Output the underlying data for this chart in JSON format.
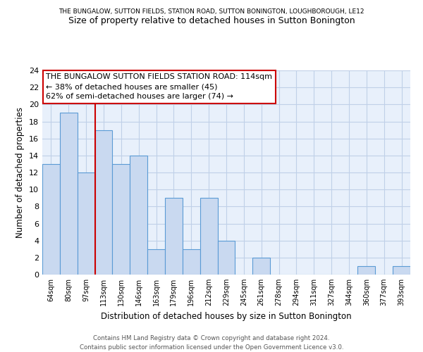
{
  "title_top": "THE BUNGALOW, SUTTON FIELDS, STATION ROAD, SUTTON BONINGTON, LOUGHBOROUGH, LE12",
  "title_main": "Size of property relative to detached houses in Sutton Bonington",
  "xlabel": "Distribution of detached houses by size in Sutton Bonington",
  "ylabel": "Number of detached properties",
  "categories": [
    "64sqm",
    "80sqm",
    "97sqm",
    "113sqm",
    "130sqm",
    "146sqm",
    "163sqm",
    "179sqm",
    "196sqm",
    "212sqm",
    "229sqm",
    "245sqm",
    "261sqm",
    "278sqm",
    "294sqm",
    "311sqm",
    "327sqm",
    "344sqm",
    "360sqm",
    "377sqm",
    "393sqm"
  ],
  "values": [
    13,
    19,
    12,
    17,
    13,
    14,
    3,
    9,
    3,
    9,
    4,
    0,
    2,
    0,
    0,
    0,
    0,
    0,
    1,
    0,
    1
  ],
  "bar_color": "#c9d9f0",
  "bar_edge_color": "#5b9bd5",
  "vline_pos": 3,
  "vline_color": "#cc0000",
  "ylim": [
    0,
    24
  ],
  "yticks": [
    0,
    2,
    4,
    6,
    8,
    10,
    12,
    14,
    16,
    18,
    20,
    22,
    24
  ],
  "annotation_title": "THE BUNGALOW SUTTON FIELDS STATION ROAD: 114sqm",
  "annotation_line2": "← 38% of detached houses are smaller (45)",
  "annotation_line3": "62% of semi-detached houses are larger (74) →",
  "annotation_box_color": "#ffffff",
  "annotation_box_edge": "#cc0000",
  "footer1": "Contains HM Land Registry data © Crown copyright and database right 2024.",
  "footer2": "Contains public sector information licensed under the Open Government Licence v3.0.",
  "bg_color": "#ffffff",
  "ax_bg_color": "#e8f0fb",
  "grid_color": "#c0d0e8"
}
